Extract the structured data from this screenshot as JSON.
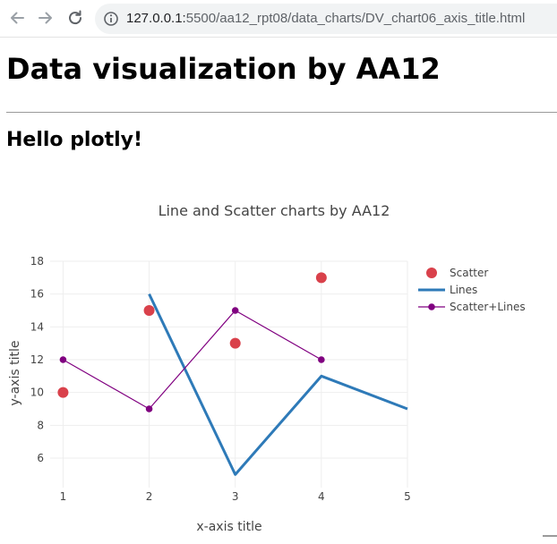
{
  "browser": {
    "url_host": "127.0.0.1:",
    "url_rest": "5500/aa12_rpt08/data_charts/DV_chart06_axis_title.html"
  },
  "page": {
    "heading": "Data visualization by AA12",
    "subheading": "Hello plotly!"
  },
  "colors": {
    "scatter": "#d9414b",
    "lines": "#2e7ab8",
    "scatter_lines": "#800080"
  },
  "chart_data": {
    "type": "line",
    "title": "Line and Scatter charts by AA12",
    "xlabel": "x-axis title",
    "ylabel": "y-axis title",
    "xlim": [
      0.85,
      5
    ],
    "ylim": [
      4.2,
      18
    ],
    "x_ticks": [
      1,
      2,
      3,
      4,
      5
    ],
    "y_ticks": [
      6,
      8,
      10,
      12,
      14,
      16,
      18
    ],
    "grid": true,
    "legend_placement": "top-right",
    "series": [
      {
        "name": "Scatter",
        "mode": "markers",
        "x": [
          1,
          2,
          3,
          4
        ],
        "y": [
          10,
          15,
          13,
          17
        ]
      },
      {
        "name": "Lines",
        "mode": "lines",
        "x": [
          2,
          3,
          4,
          5
        ],
        "y": [
          16,
          5,
          11,
          9
        ]
      },
      {
        "name": "Scatter+Lines",
        "mode": "lines+markers",
        "x": [
          1,
          2,
          3,
          4
        ],
        "y": [
          12,
          9,
          15,
          12
        ]
      }
    ]
  }
}
